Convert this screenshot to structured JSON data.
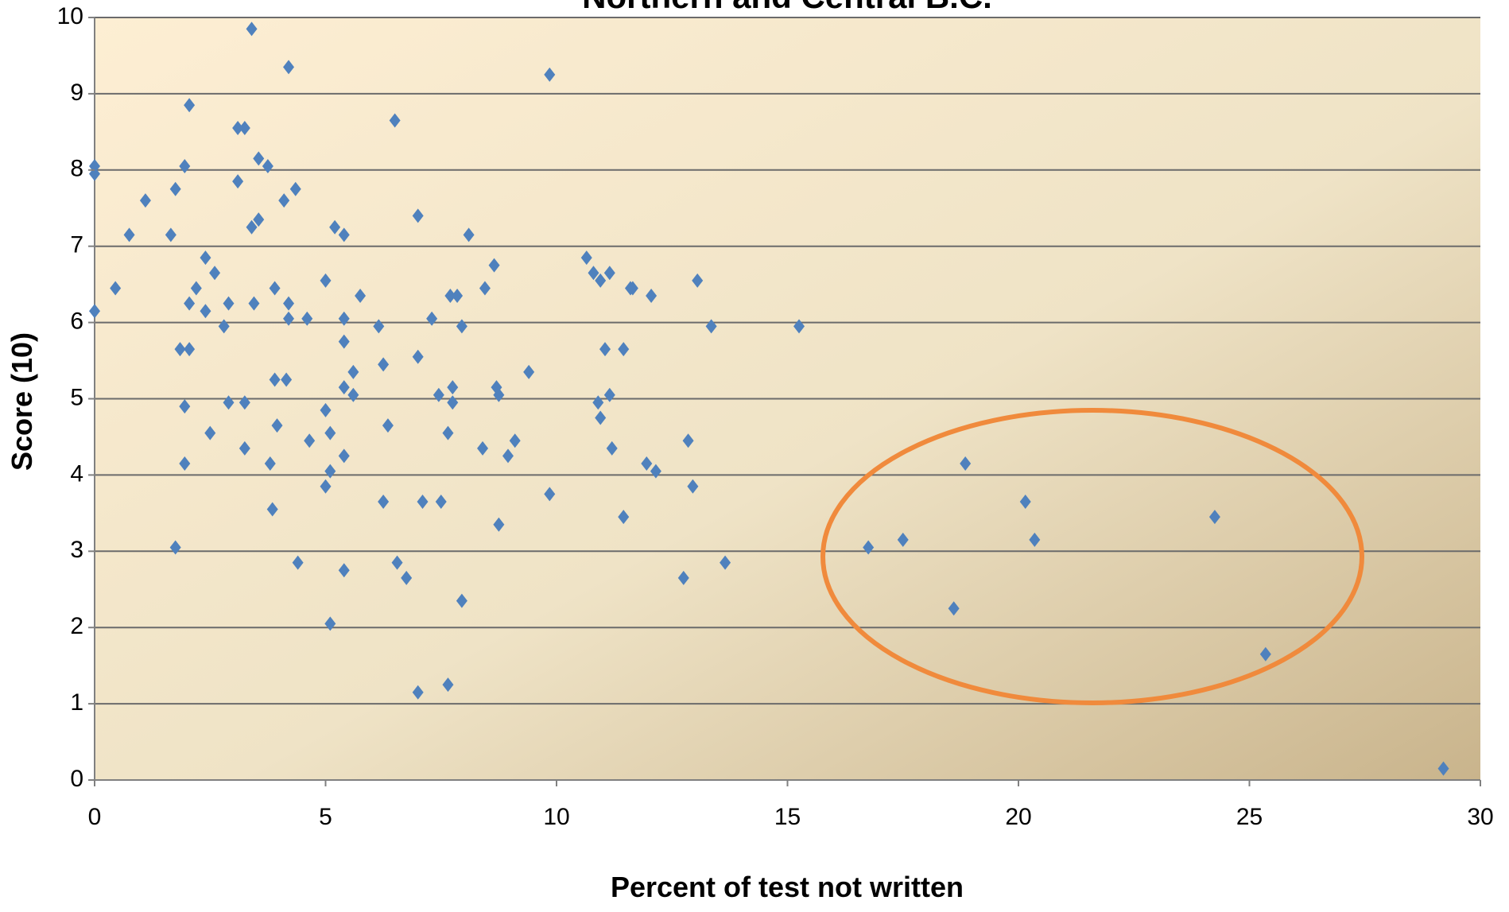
{
  "chart_data": {
    "type": "scatter",
    "title": "Northern and Central B.C.",
    "x_label": "Percent of test not written",
    "y_label": "Score (10)",
    "color": "#4f81bd",
    "grid": true,
    "xlim": [
      0,
      30
    ],
    "xticks": [
      0,
      5,
      10,
      15,
      20,
      25,
      30
    ],
    "ylim": [
      0,
      10
    ],
    "yticks": [
      0,
      1,
      2,
      3,
      4,
      5,
      6,
      7,
      8,
      9,
      10
    ],
    "x": [
      0,
      0,
      0,
      0.45,
      0.75,
      1.1,
      1.65,
      1.75,
      1.75,
      1.85,
      1.95,
      1.95,
      1.95,
      2.05,
      2.05,
      2.05,
      2.2,
      2.4,
      2.4,
      2.5,
      2.6,
      2.8,
      2.9,
      2.9,
      3.1,
      3.1,
      3.25,
      3.25,
      3.25,
      3.4,
      3.4,
      3.45,
      3.55,
      3.55,
      3.75,
      3.8,
      3.85,
      3.9,
      3.9,
      3.95,
      4.1,
      4.15,
      4.2,
      4.2,
      4.2,
      4.35,
      4.4,
      4.6,
      4.65,
      5.0,
      5.0,
      5.0,
      5.1,
      5.1,
      5.1,
      5.2,
      5.4,
      5.4,
      5.4,
      5.4,
      5.4,
      5.4,
      5.6,
      5.6,
      5.75,
      6.15,
      6.25,
      6.25,
      6.35,
      6.5,
      6.55,
      6.75,
      7.0,
      7.0,
      7.0,
      7.1,
      7.3,
      7.45,
      7.5,
      7.65,
      7.65,
      7.7,
      7.75,
      7.75,
      7.85,
      7.95,
      7.95,
      8.1,
      8.4,
      8.45,
      8.65,
      8.7,
      8.75,
      8.75,
      8.95,
      9.1,
      9.4,
      9.85,
      9.85,
      10.65,
      10.8,
      10.9,
      10.95,
      10.95,
      11.05,
      11.15,
      11.15,
      11.2,
      11.45,
      11.45,
      11.6,
      11.65,
      11.95,
      12.05,
      12.15,
      12.75,
      12.85,
      12.95,
      13.05,
      13.35,
      13.65,
      15.25,
      16.75,
      17.5,
      18.6,
      18.85,
      20.15,
      20.35,
      24.25,
      25.35,
      29.2
    ],
    "values": [
      8.05,
      7.95,
      6.15,
      6.45,
      7.15,
      7.6,
      7.15,
      7.75,
      3.05,
      5.65,
      8.05,
      4.9,
      4.15,
      8.85,
      6.25,
      5.65,
      6.45,
      6.85,
      6.15,
      4.55,
      6.65,
      5.95,
      6.25,
      4.95,
      8.55,
      7.85,
      8.55,
      4.95,
      4.35,
      9.85,
      7.25,
      6.25,
      7.35,
      8.15,
      8.05,
      4.15,
      3.55,
      6.45,
      5.25,
      4.65,
      7.6,
      5.25,
      9.35,
      6.25,
      6.05,
      7.75,
      2.85,
      6.05,
      4.45,
      6.55,
      4.85,
      3.85,
      4.55,
      4.05,
      2.05,
      7.25,
      7.15,
      6.05,
      5.75,
      5.15,
      4.25,
      2.75,
      5.35,
      5.05,
      6.35,
      5.95,
      5.45,
      3.65,
      4.65,
      8.65,
      2.85,
      2.65,
      7.4,
      5.55,
      1.15,
      3.65,
      6.05,
      5.05,
      3.65,
      4.55,
      1.25,
      6.35,
      5.15,
      4.95,
      6.35,
      5.95,
      2.35,
      7.15,
      4.35,
      6.45,
      6.75,
      5.15,
      5.05,
      3.35,
      4.25,
      4.45,
      5.35,
      9.25,
      3.75,
      6.85,
      6.65,
      4.95,
      6.55,
      4.75,
      5.65,
      6.65,
      5.05,
      4.35,
      5.65,
      3.45,
      6.45,
      6.45,
      4.15,
      6.35,
      4.05,
      2.65,
      4.45,
      3.85,
      6.55,
      5.95,
      2.85,
      5.95,
      3.05,
      3.15,
      2.25,
      4.15,
      3.65,
      3.15,
      3.45,
      1.65,
      0.15
    ]
  }
}
